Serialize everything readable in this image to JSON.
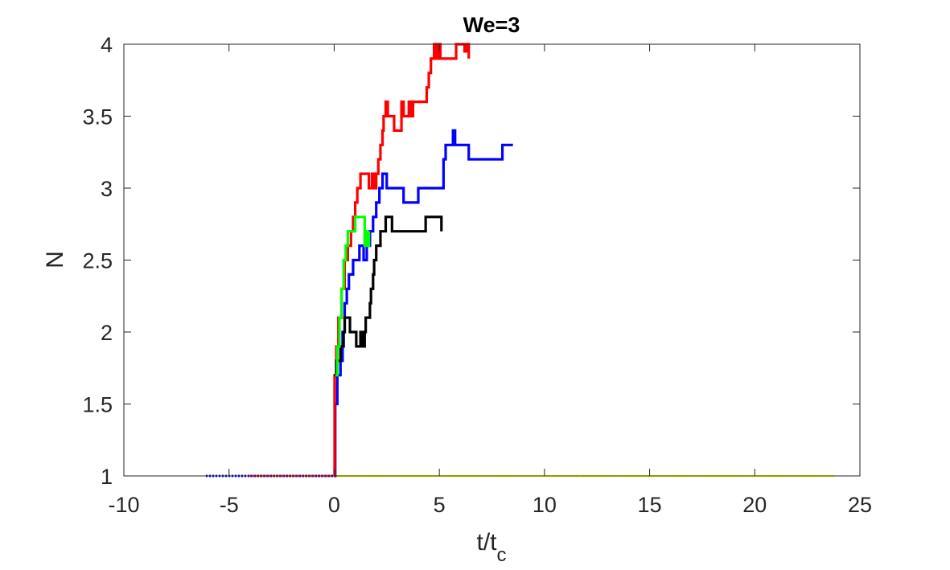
{
  "chart_data": {
    "type": "line",
    "title": "We=3",
    "xlabel_main": "t/t",
    "xlabel_sub": "c",
    "ylabel": "N",
    "xlim": [
      -10,
      25
    ],
    "ylim": [
      1,
      4
    ],
    "xticks": [
      -10,
      -5,
      0,
      5,
      10,
      15,
      20,
      25
    ],
    "yticks": [
      1,
      1.5,
      2,
      2.5,
      3,
      3.5,
      4
    ],
    "xtick_labels": [
      "-10",
      "-5",
      "0",
      "5",
      "10",
      "15",
      "20",
      "25"
    ],
    "ytick_labels": [
      "1",
      "1.5",
      "2",
      "2.5",
      "3",
      "3.5",
      "4"
    ],
    "grid": false,
    "series": [
      {
        "color": "#0000ff",
        "dotted_before_zero": true,
        "points": [
          [
            -6.1,
            1
          ],
          [
            0,
            1
          ],
          [
            0.05,
            1.5
          ],
          [
            0.15,
            1.7
          ],
          [
            0.3,
            1.8
          ],
          [
            0.4,
            2.0
          ],
          [
            0.5,
            2.2
          ],
          [
            0.6,
            2.3
          ],
          [
            0.7,
            2.4
          ],
          [
            0.9,
            2.5
          ],
          [
            1.0,
            2.5
          ],
          [
            1.2,
            2.6
          ],
          [
            1.4,
            2.5
          ],
          [
            1.55,
            2.6
          ],
          [
            1.7,
            2.7
          ],
          [
            1.85,
            2.8
          ],
          [
            2.0,
            2.9
          ],
          [
            2.15,
            3.0
          ],
          [
            2.3,
            3.1
          ],
          [
            2.5,
            3.0
          ],
          [
            3.2,
            3.0
          ],
          [
            3.3,
            2.9
          ],
          [
            3.9,
            2.9
          ],
          [
            4.0,
            3.0
          ],
          [
            5.0,
            3.0
          ],
          [
            5.2,
            3.2
          ],
          [
            5.3,
            3.3
          ],
          [
            5.6,
            3.3
          ],
          [
            5.65,
            3.4
          ],
          [
            5.75,
            3.3
          ],
          [
            6.3,
            3.3
          ],
          [
            6.4,
            3.2
          ],
          [
            7.9,
            3.2
          ],
          [
            8.0,
            3.3
          ],
          [
            8.5,
            3.3
          ]
        ]
      },
      {
        "color": "#ff0000",
        "dotted_before_zero": true,
        "points": [
          [
            -4,
            1
          ],
          [
            0,
            1
          ],
          [
            0.02,
            1.7
          ],
          [
            0.1,
            1.9
          ],
          [
            0.2,
            2.1
          ],
          [
            0.35,
            2.3
          ],
          [
            0.5,
            2.5
          ],
          [
            0.65,
            2.6
          ],
          [
            0.8,
            2.7
          ],
          [
            0.9,
            2.8
          ],
          [
            1.0,
            2.9
          ],
          [
            1.1,
            3.0
          ],
          [
            1.2,
            3.0
          ],
          [
            1.25,
            3.1
          ],
          [
            1.6,
            3.1
          ],
          [
            1.65,
            3.0
          ],
          [
            1.8,
            3.1
          ],
          [
            1.9,
            3.0
          ],
          [
            2.0,
            3.1
          ],
          [
            2.1,
            3.2
          ],
          [
            2.2,
            3.3
          ],
          [
            2.3,
            3.4
          ],
          [
            2.35,
            3.5
          ],
          [
            2.45,
            3.6
          ],
          [
            2.55,
            3.5
          ],
          [
            2.8,
            3.5
          ],
          [
            2.85,
            3.4
          ],
          [
            3.1,
            3.4
          ],
          [
            3.2,
            3.6
          ],
          [
            3.3,
            3.5
          ],
          [
            3.55,
            3.6
          ],
          [
            3.65,
            3.5
          ],
          [
            3.75,
            3.6
          ],
          [
            4.3,
            3.6
          ],
          [
            4.4,
            3.7
          ],
          [
            4.5,
            3.8
          ],
          [
            4.6,
            3.9
          ],
          [
            4.75,
            4.0
          ],
          [
            4.85,
            3.9
          ],
          [
            4.95,
            4.0
          ],
          [
            5.05,
            3.9
          ],
          [
            5.7,
            3.9
          ],
          [
            5.8,
            4.0
          ],
          [
            6.1,
            4.0
          ],
          [
            6.2,
            3.95
          ],
          [
            6.3,
            4.0
          ],
          [
            6.4,
            3.9
          ]
        ]
      },
      {
        "color": "#000000",
        "dotted_before_zero": false,
        "points": [
          [
            0,
            1.7
          ],
          [
            0.1,
            1.8
          ],
          [
            0.3,
            1.9
          ],
          [
            0.45,
            2.0
          ],
          [
            0.5,
            2.1
          ],
          [
            0.7,
            2.1
          ],
          [
            0.75,
            2.0
          ],
          [
            1.0,
            2.0
          ],
          [
            1.05,
            1.9
          ],
          [
            1.2,
            1.9
          ],
          [
            1.25,
            2.0
          ],
          [
            1.35,
            1.9
          ],
          [
            1.45,
            2.0
          ],
          [
            1.5,
            2.1
          ],
          [
            1.65,
            2.1
          ],
          [
            1.7,
            2.2
          ],
          [
            1.75,
            2.3
          ],
          [
            1.85,
            2.4
          ],
          [
            1.9,
            2.5
          ],
          [
            2.0,
            2.6
          ],
          [
            2.2,
            2.7
          ],
          [
            2.4,
            2.7
          ],
          [
            2.45,
            2.8
          ],
          [
            2.7,
            2.8
          ],
          [
            2.75,
            2.7
          ],
          [
            4.3,
            2.7
          ],
          [
            4.35,
            2.8
          ],
          [
            5.1,
            2.8
          ],
          [
            5.1,
            2.7
          ]
        ]
      },
      {
        "color": "#00ff00",
        "dotted_before_zero": false,
        "points": [
          [
            0.05,
            1.7
          ],
          [
            0.15,
            1.9
          ],
          [
            0.25,
            2.1
          ],
          [
            0.35,
            2.3
          ],
          [
            0.45,
            2.5
          ],
          [
            0.55,
            2.6
          ],
          [
            0.65,
            2.7
          ],
          [
            0.9,
            2.7
          ],
          [
            1.0,
            2.8
          ],
          [
            1.4,
            2.8
          ],
          [
            1.45,
            2.6
          ],
          [
            1.5,
            2.7
          ],
          [
            1.55,
            2.6
          ],
          [
            1.65,
            2.7
          ]
        ]
      },
      {
        "color": "#ffff00",
        "dotted_before_zero": false,
        "points": [
          [
            0,
            1
          ],
          [
            23.8,
            1
          ]
        ]
      }
    ]
  }
}
